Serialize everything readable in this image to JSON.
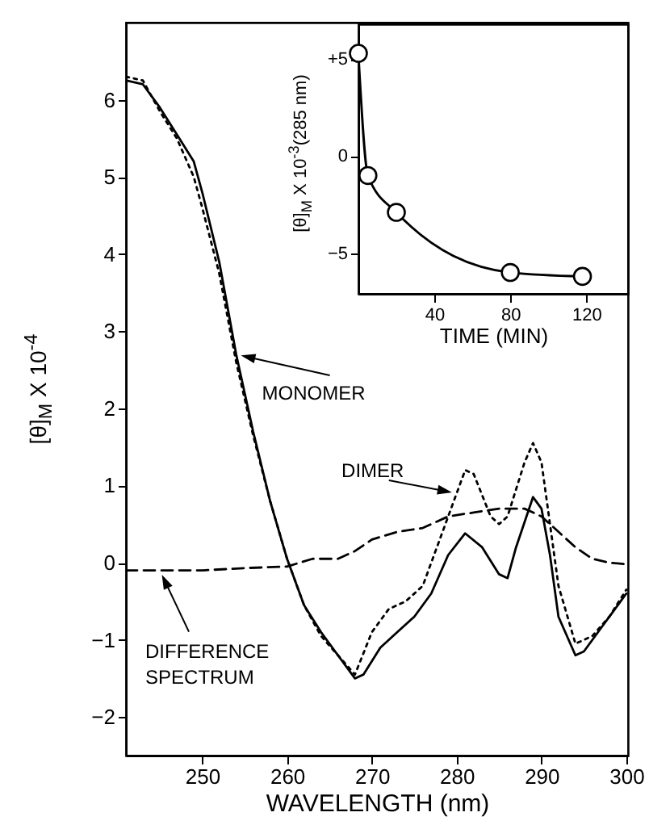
{
  "chart_data": [
    {
      "type": "line",
      "xlabel": "WAVELENGTH   (nm)",
      "ylabel": "[θ]$_{M}$ X 10$^{-4}$",
      "x": [
        241,
        243,
        245,
        247,
        249,
        250,
        252,
        254,
        256,
        258,
        260,
        262,
        264,
        266,
        268,
        269,
        271,
        273,
        275,
        277,
        279,
        281,
        283,
        285,
        286,
        287,
        289,
        290,
        291,
        292,
        294,
        295,
        297,
        299,
        300
      ],
      "series": [
        {
          "color": "#000000",
          "line_style": "solid",
          "values": [
            6.25,
            6.2,
            5.9,
            5.55,
            5.2,
            4.8,
            3.9,
            2.7,
            1.7,
            0.8,
            0.05,
            -0.55,
            -0.9,
            -1.2,
            -1.5,
            -1.45,
            -1.1,
            -0.9,
            -0.7,
            -0.4,
            0.1,
            0.38,
            0.2,
            -0.15,
            -0.2,
            0.2,
            0.85,
            0.7,
            0.1,
            -0.7,
            -1.2,
            -1.15,
            -0.85,
            -0.55,
            -0.4
          ]
        },
        {
          "color": "#000000",
          "line_style": "dotted",
          "x": [
            241,
            243,
            245,
            247,
            249,
            250,
            252,
            254,
            256,
            258,
            260,
            262,
            264,
            266,
            268,
            270,
            272,
            274,
            276,
            278,
            280,
            281,
            282,
            284,
            285,
            286,
            288,
            289,
            290,
            291,
            292,
            294,
            296,
            298,
            300
          ],
          "values": [
            6.3,
            6.25,
            5.85,
            5.5,
            5.0,
            4.6,
            3.75,
            2.6,
            1.65,
            0.8,
            0.05,
            -0.55,
            -0.95,
            -1.2,
            -1.45,
            -0.9,
            -0.6,
            -0.5,
            -0.3,
            0.3,
            0.9,
            1.2,
            1.15,
            0.6,
            0.5,
            0.6,
            1.3,
            1.55,
            1.3,
            0.5,
            -0.3,
            -1.05,
            -0.95,
            -0.7,
            -0.35
          ]
        },
        {
          "color": "#000000",
          "line_style": "dashed",
          "x": [
            241,
            245,
            250,
            255,
            260,
            263,
            266,
            268,
            270,
            273,
            276,
            279,
            282,
            285,
            288,
            290,
            292,
            294,
            296,
            298,
            300
          ],
          "values": [
            -0.1,
            -0.1,
            -0.1,
            -0.07,
            -0.05,
            0.05,
            0.05,
            0.15,
            0.3,
            0.4,
            0.45,
            0.6,
            0.65,
            0.7,
            0.7,
            0.6,
            0.4,
            0.2,
            0.05,
            0,
            -0.02
          ]
        }
      ],
      "annotations": [
        {
          "text": "MONOMER",
          "x": 254,
          "y": 2.7
        },
        {
          "text": "DIMER",
          "x": 280,
          "y": 0.9
        },
        {
          "text": "DIFFERENCE SPECTRUM",
          "x": 245,
          "y": -0.1
        }
      ],
      "xlim": [
        241,
        300.2
      ],
      "ylim": [
        -2.5,
        7
      ],
      "xticks": [
        250,
        260,
        270,
        280,
        290,
        300
      ],
      "yticks": [
        -2,
        -1,
        0,
        1,
        2,
        3,
        4,
        5,
        6
      ],
      "grid": false
    },
    {
      "type": "line",
      "xlabel": "TIME (MIN)",
      "ylabel": "[θ]$_{M}$ X 10$^{-3}$(285 nm)",
      "marker": "circle",
      "x": [
        0,
        5,
        20,
        80,
        118
      ],
      "series": [
        {
          "color": "#000000",
          "values": [
            5.3,
            -1,
            -2.9,
            -6,
            -6.2
          ]
        }
      ],
      "xlim": [
        0,
        142
      ],
      "ylim": [
        -7.1,
        6.8
      ],
      "xticks": [
        40,
        80,
        120
      ],
      "yticks": [
        {
          "value": 5,
          "label": "+5"
        },
        0,
        -5
      ],
      "grid": false
    }
  ]
}
